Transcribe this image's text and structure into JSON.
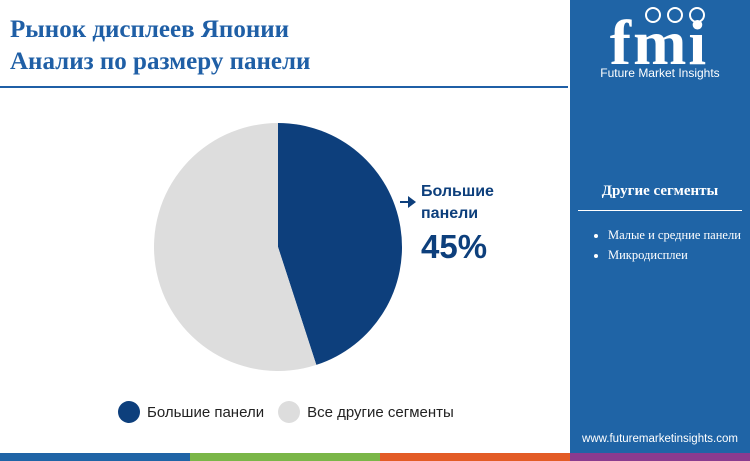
{
  "header": {
    "title_line1": "Рынок дисплеев Японии",
    "title_line2": "Анализ по размеру панели"
  },
  "chart_data": {
    "type": "pie",
    "slices": [
      {
        "label": "Большие панели",
        "value": 45,
        "color": "#0d3f7c"
      },
      {
        "label": "Все другие сегменты",
        "value": 55,
        "color": "#dddddd"
      }
    ],
    "callout": {
      "label": "Большие панели",
      "value_text": "45%"
    },
    "legend": [
      "Большие панели",
      "Все другие сегменты"
    ],
    "legend_placement": "bottom"
  },
  "sidebar": {
    "logo_text": "fmi",
    "logo_caption": "Future Market Insights",
    "segments_title": "Другие сегменты",
    "segments": [
      "Малые и средние панели",
      "Микродисплеи"
    ],
    "website": "www.futuremarketinsights.com"
  },
  "colors": {
    "primary": "#0d3f7c",
    "title_blue": "#1f5fa6",
    "sidebar_blue": "#1f64a6",
    "other_segments": "#dddddd",
    "bottom_bar": [
      "#1f64a6",
      "#7ab648",
      "#e35c26",
      "#8a3b8f"
    ]
  }
}
